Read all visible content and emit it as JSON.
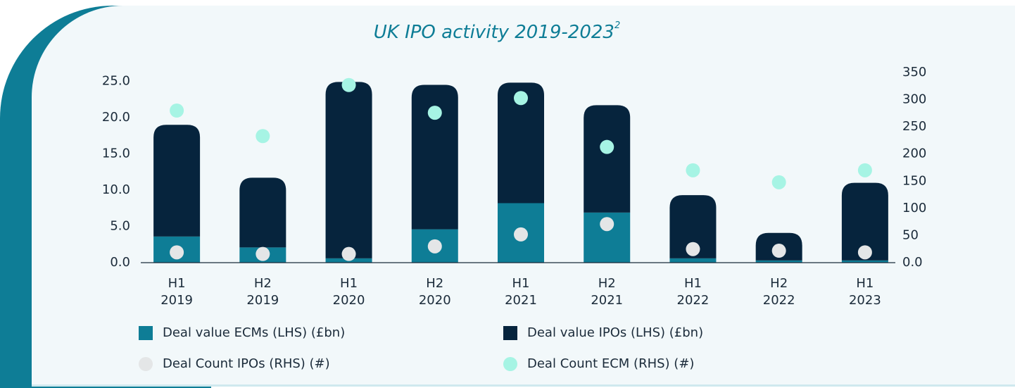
{
  "chart_data": {
    "type": "bar",
    "title": "UK IPO activity 2019-2023",
    "title_footnote": "2",
    "stacked": true,
    "categories": [
      [
        "H1",
        "2019"
      ],
      [
        "H2",
        "2019"
      ],
      [
        "H1",
        "2020"
      ],
      [
        "H2",
        "2020"
      ],
      [
        "H1",
        "2021"
      ],
      [
        "H2",
        "2021"
      ],
      [
        "H1",
        "2022"
      ],
      [
        "H2",
        "2022"
      ],
      [
        "H1",
        "2023"
      ]
    ],
    "series": [
      {
        "name": "Deal value ECMs (LHS) (£bn)",
        "type": "bar",
        "color": "#0e7d96",
        "values": [
          3.6,
          2.1,
          0.6,
          4.6,
          8.2,
          6.9,
          0.6,
          0.3,
          0.3
        ]
      },
      {
        "name": "Deal value IPOs (LHS) (£bn)",
        "type": "bar",
        "color": "#06243d",
        "values": [
          15.4,
          9.6,
          24.3,
          19.9,
          16.6,
          14.8,
          8.7,
          3.8,
          10.7
        ]
      },
      {
        "name": "Deal Count IPOs (RHS) (#)",
        "type": "scatter",
        "axis": "y2",
        "color": "#e4e6e7",
        "values": [
          19,
          16,
          16,
          30,
          52,
          71,
          25,
          22,
          19
        ]
      },
      {
        "name": "Deal Count ECM (RHS) (#)",
        "type": "scatter",
        "axis": "y2",
        "color": "#a6f4e4",
        "values": [
          280,
          233,
          327,
          276,
          303,
          213,
          170,
          148,
          170
        ]
      }
    ],
    "ylim": [
      0,
      26.2
    ],
    "yticks": [
      {
        "value": 0,
        "label": "0.0"
      },
      {
        "value": 5,
        "label": "5.0"
      },
      {
        "value": 10,
        "label": "10.0"
      },
      {
        "value": 15,
        "label": "15.0"
      },
      {
        "value": 20,
        "label": "20.0"
      },
      {
        "value": 25,
        "label": "25.0"
      }
    ],
    "y2lim": [
      0,
      350
    ],
    "y2ticks": [
      {
        "value": 0,
        "label": "0.0"
      },
      50,
      100,
      150,
      200,
      250,
      300,
      350
    ],
    "grid": false
  }
}
